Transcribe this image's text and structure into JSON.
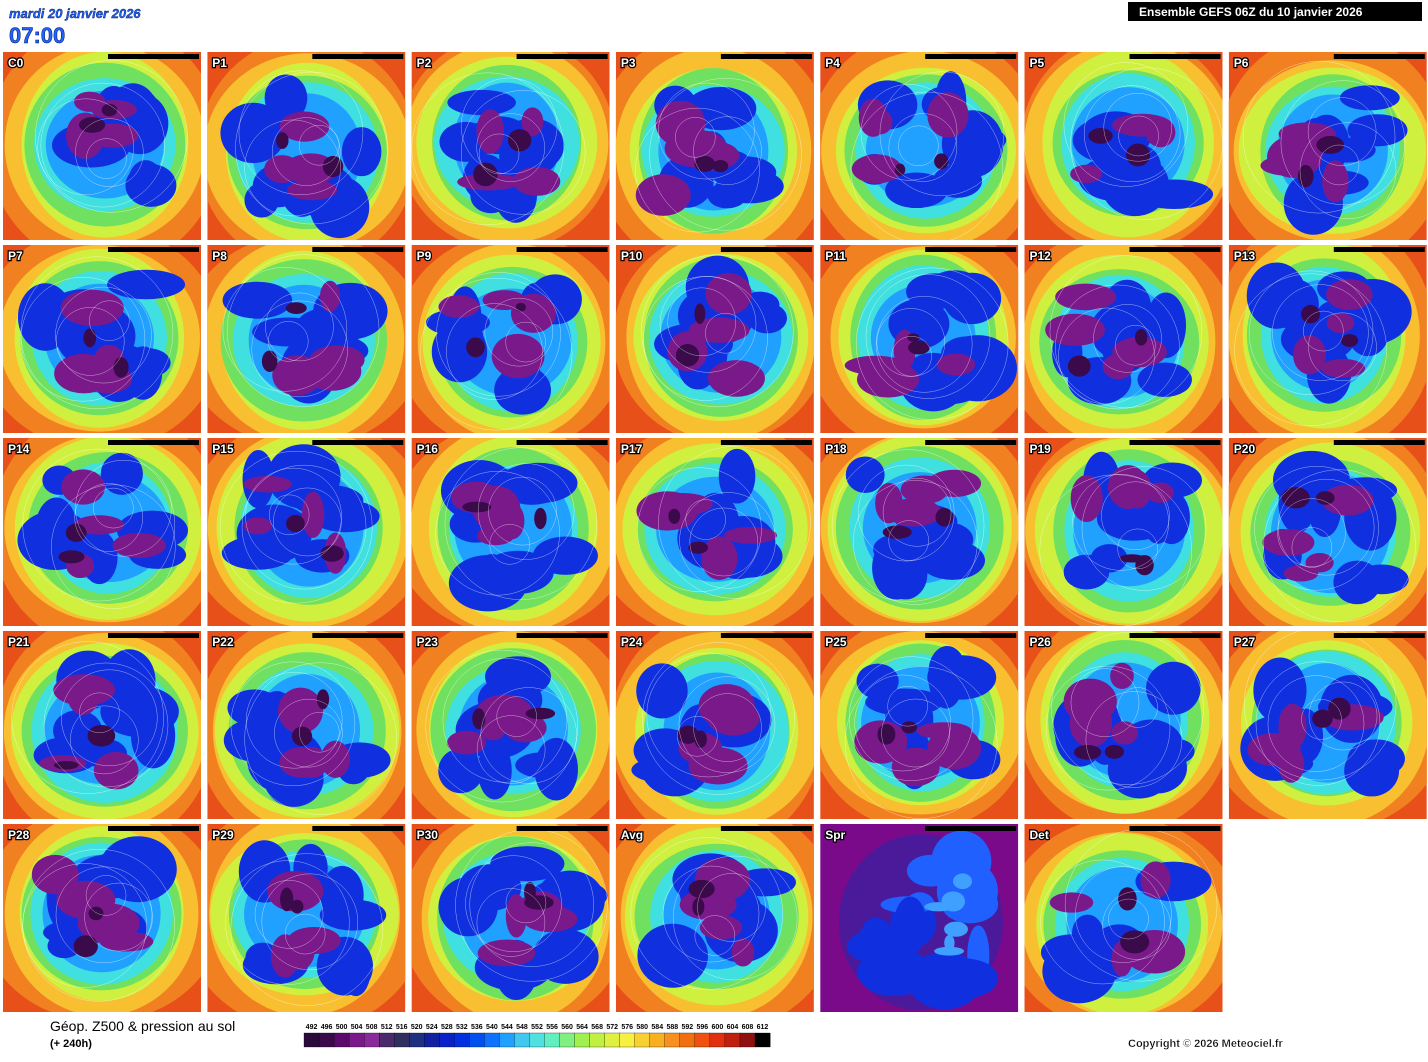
{
  "header": {
    "date": "mardi 20 janvier 2026",
    "time": "07:00",
    "title": "Ensemble GEFS 06Z du 10 janvier 2026"
  },
  "panels": [
    {
      "label": "C0"
    },
    {
      "label": "P1"
    },
    {
      "label": "P2"
    },
    {
      "label": "P3"
    },
    {
      "label": "P4"
    },
    {
      "label": "P5"
    },
    {
      "label": "P6"
    },
    {
      "label": "P7"
    },
    {
      "label": "P8"
    },
    {
      "label": "P9"
    },
    {
      "label": "P10"
    },
    {
      "label": "P11"
    },
    {
      "label": "P12"
    },
    {
      "label": "P13"
    },
    {
      "label": "P14"
    },
    {
      "label": "P15"
    },
    {
      "label": "P16"
    },
    {
      "label": "P17"
    },
    {
      "label": "P18"
    },
    {
      "label": "P19"
    },
    {
      "label": "P20"
    },
    {
      "label": "P21"
    },
    {
      "label": "P22"
    },
    {
      "label": "P23"
    },
    {
      "label": "P24"
    },
    {
      "label": "P25"
    },
    {
      "label": "P26"
    },
    {
      "label": "P27"
    },
    {
      "label": "P28"
    },
    {
      "label": "P29"
    },
    {
      "label": "P30"
    },
    {
      "label": "Avg"
    },
    {
      "label": "Spr"
    },
    {
      "label": "Det"
    }
  ],
  "footer": {
    "title": "Géop. Z500 & pression au sol",
    "lead": "(+ 240h)",
    "copyright": "Copyright © 2026 Meteociel.fr",
    "scale": {
      "labels": [
        492,
        496,
        500,
        504,
        508,
        512,
        516,
        520,
        524,
        528,
        532,
        536,
        540,
        544,
        548,
        552,
        556,
        560,
        564,
        568,
        572,
        576,
        580,
        584,
        588,
        592,
        596,
        600,
        604,
        608,
        612
      ],
      "colors": [
        "#2a0a3a",
        "#3a0a4a",
        "#5a0a6a",
        "#7a1a8a",
        "#8a2a9a",
        "#4a2a6a",
        "#303060",
        "#203080",
        "#1020a0",
        "#0a20c8",
        "#0030e0",
        "#0050f0",
        "#1070ff",
        "#20a0ff",
        "#40c8f0",
        "#50e0e0",
        "#60f0c0",
        "#80f080",
        "#a0f050",
        "#c0f040",
        "#e0f040",
        "#f8f040",
        "#f8d030",
        "#f8b020",
        "#f89020",
        "#f07010",
        "#f05010",
        "#e03010",
        "#c02010",
        "#901010",
        "#000000"
      ]
    }
  }
}
